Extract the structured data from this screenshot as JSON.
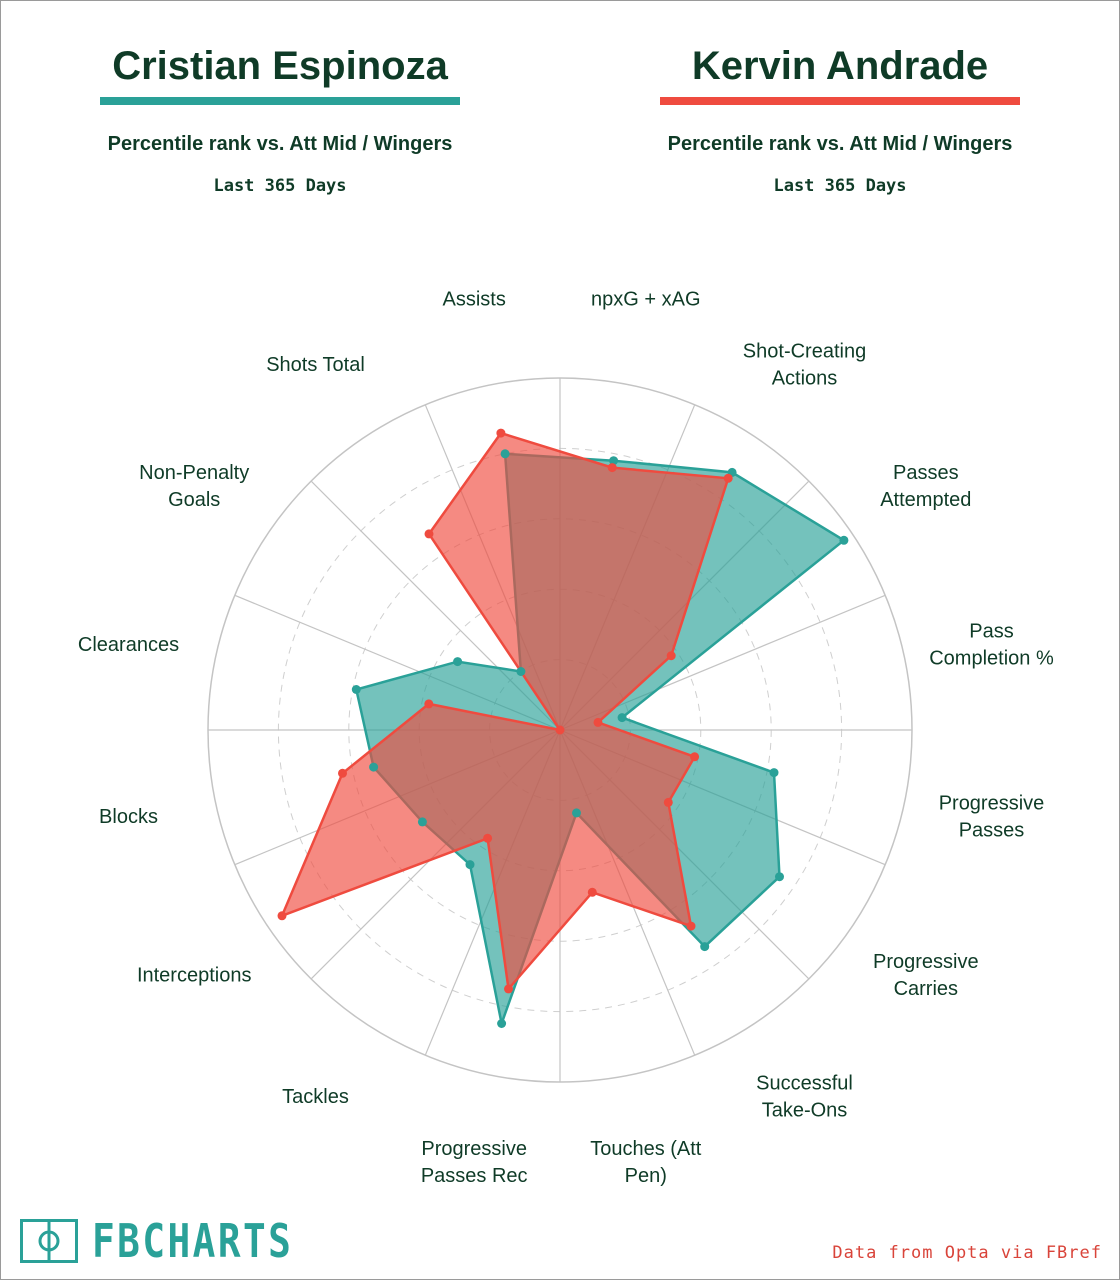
{
  "players": [
    {
      "name": "Cristian Espinoza",
      "subtitle": "Percentile rank vs. Att Mid / Wingers",
      "period": "Last 365 Days",
      "color": "#2aa198"
    },
    {
      "name": "Kervin Andrade",
      "subtitle": "Percentile rank vs. Att Mid / Wingers",
      "period": "Last 365 Days",
      "color": "#ef4b3f"
    }
  ],
  "chart_data": {
    "type": "radar",
    "scale": [
      0,
      100
    ],
    "rings": [
      20,
      40,
      60,
      80,
      100
    ],
    "axes": [
      [
        "npxG + xAG"
      ],
      [
        "Shot-Creating",
        "Actions"
      ],
      [
        "Passes",
        "Attempted"
      ],
      [
        "Pass",
        "Completion %"
      ],
      [
        "Progressive",
        "Passes"
      ],
      [
        "Progressive",
        "Carries"
      ],
      [
        "Successful",
        "Take-Ons"
      ],
      [
        "Touches (Att",
        "Pen)"
      ],
      [
        "Progressive",
        "Passes Rec"
      ],
      [
        "Tackles"
      ],
      [
        "Interceptions"
      ],
      [
        "Blocks"
      ],
      [
        "Clearances"
      ],
      [
        "Non-Penalty",
        "Goals"
      ],
      [
        "Shots Total"
      ],
      [
        "Assists"
      ]
    ],
    "series": [
      {
        "name": "Cristian Espinoza",
        "values": [
          78,
          88,
          97,
          18,
          62,
          75,
          74,
          24,
          85,
          46,
          47,
          54,
          59,
          35,
          20,
          80
        ]
      },
      {
        "name": "Kervin Andrade",
        "values": [
          76,
          86,
          38,
          11,
          39,
          37,
          67,
          47,
          75,
          37,
          95,
          63,
          38,
          0,
          67,
          86
        ]
      }
    ]
  },
  "branding": {
    "logo_text": "FBCHARTS",
    "source": "Data from Opta via FBref"
  }
}
